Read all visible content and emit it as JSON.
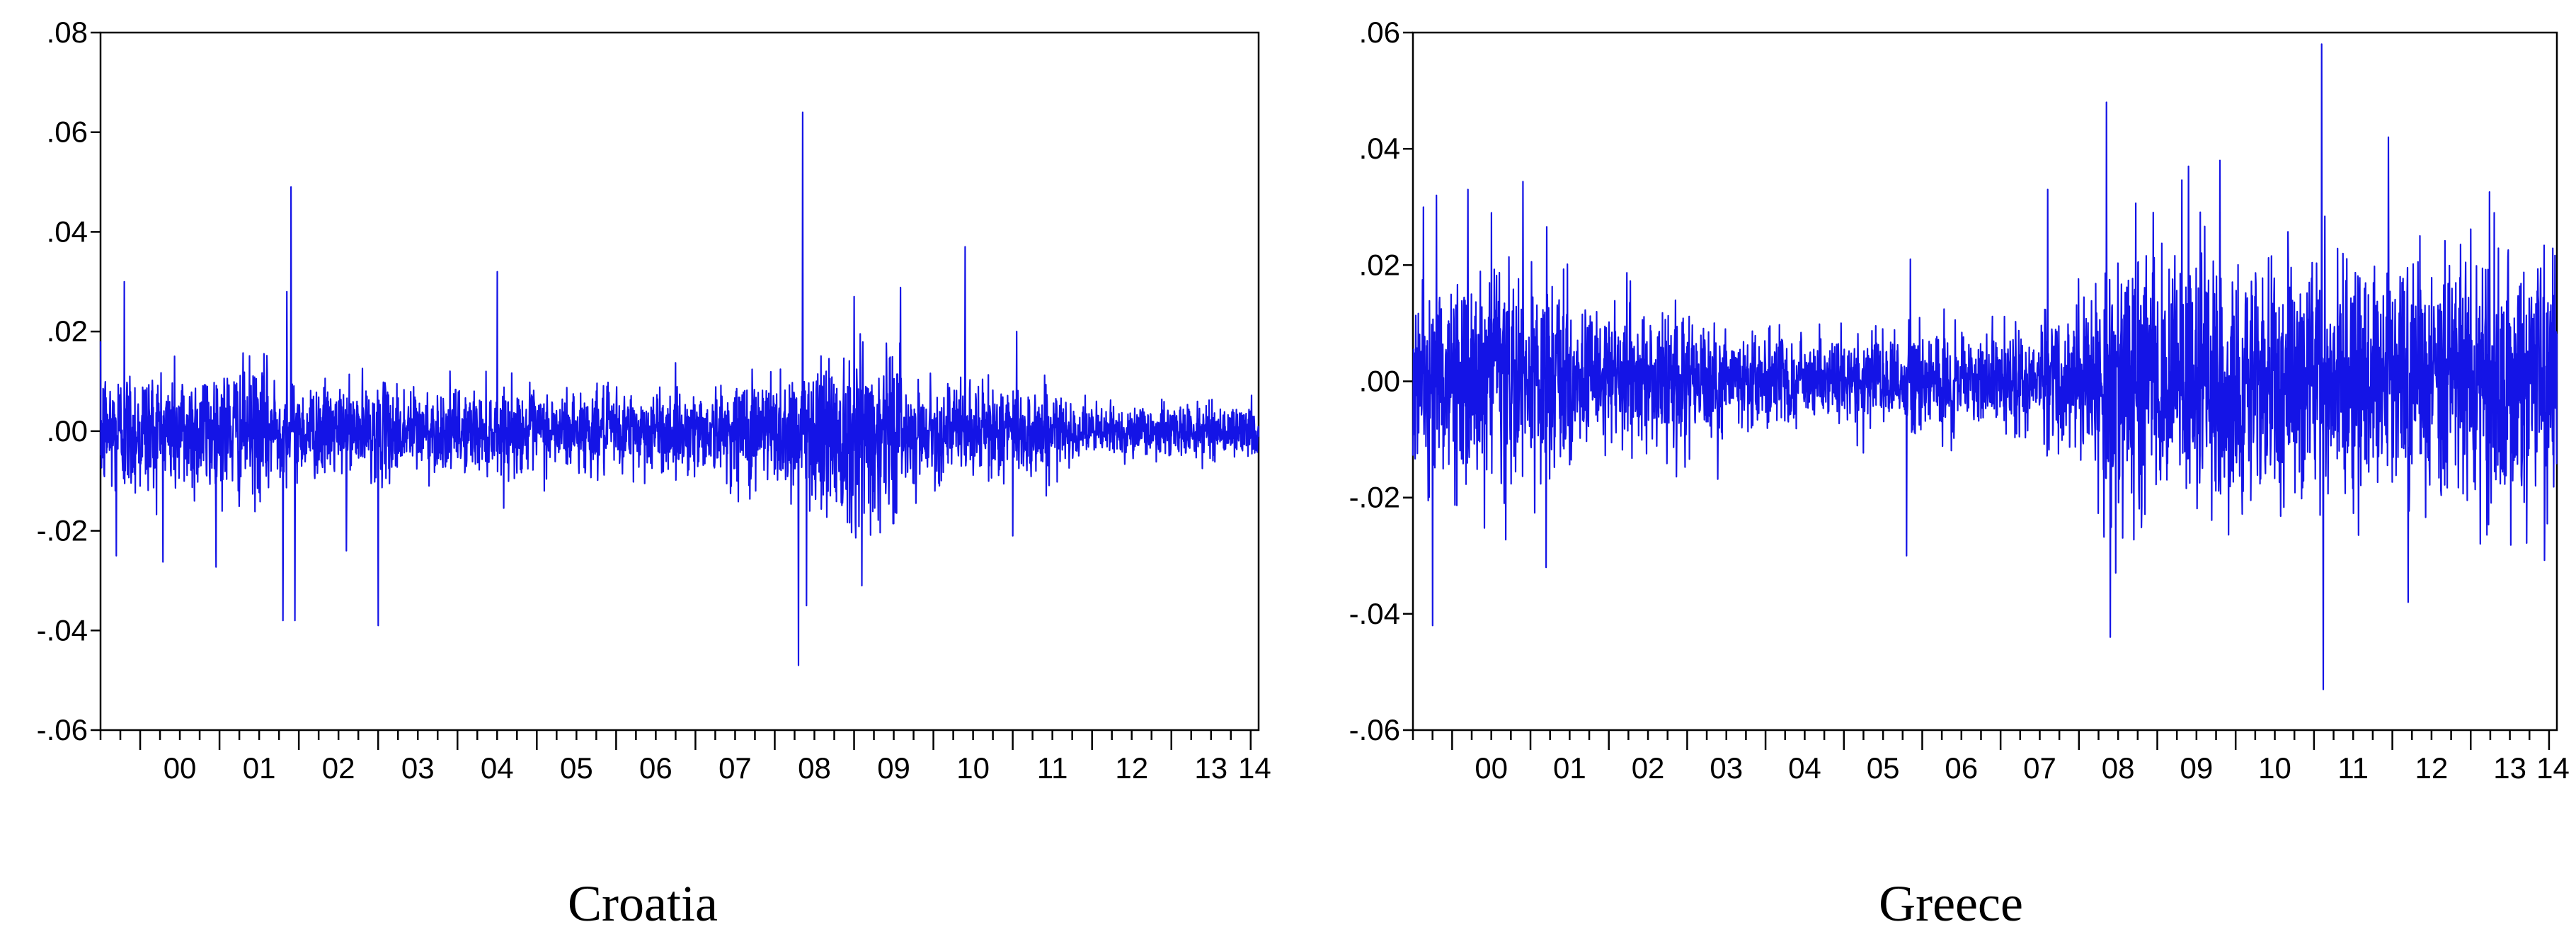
{
  "chart_data": [
    {
      "type": "line",
      "title": "Croatia",
      "xlabel": "",
      "ylabel": "",
      "x_tick_labels": [
        "00",
        "01",
        "02",
        "03",
        "04",
        "05",
        "06",
        "07",
        "08",
        "09",
        "10",
        "11",
        "12",
        "13",
        "14"
      ],
      "x_range_years": [
        1999.5,
        2014.1
      ],
      "y_tick_labels": [
        ".08",
        ".06",
        ".04",
        ".02",
        ".00",
        "-.02",
        "-.04",
        "-.06"
      ],
      "y_ticks": [
        0.08,
        0.06,
        0.04,
        0.02,
        0.0,
        -0.02,
        -0.04,
        -0.06
      ],
      "ylim": [
        -0.06,
        0.08
      ],
      "grid": false,
      "line_color": "#1414e6",
      "series": [
        {
          "volatility_regimes": [
            {
              "from": 1999.5,
              "to": 2001.7,
              "sd": 0.0065
            },
            {
              "from": 2001.7,
              "to": 2003.5,
              "sd": 0.0045
            },
            {
              "from": 2003.5,
              "to": 2007.5,
              "sd": 0.004
            },
            {
              "from": 2007.5,
              "to": 2008.5,
              "sd": 0.006
            },
            {
              "from": 2008.5,
              "to": 2009.6,
              "sd": 0.009
            },
            {
              "from": 2009.6,
              "to": 2011.6,
              "sd": 0.0045
            },
            {
              "from": 2011.6,
              "to": 2014.1,
              "sd": 0.0025
            }
          ],
          "spikes": [
            {
              "x": 1999.7,
              "y": -0.025
            },
            {
              "x": 1999.8,
              "y": 0.03
            },
            {
              "x": 2001.8,
              "y": -0.038
            },
            {
              "x": 2001.85,
              "y": 0.028
            },
            {
              "x": 2001.9,
              "y": 0.049
            },
            {
              "x": 2001.95,
              "y": -0.038
            },
            {
              "x": 2002.6,
              "y": -0.024
            },
            {
              "x": 2003.0,
              "y": -0.039
            },
            {
              "x": 2004.5,
              "y": 0.032
            },
            {
              "x": 2008.3,
              "y": -0.047
            },
            {
              "x": 2008.35,
              "y": 0.064
            },
            {
              "x": 2008.4,
              "y": -0.035
            },
            {
              "x": 2009.0,
              "y": 0.027
            },
            {
              "x": 2009.1,
              "y": -0.031
            },
            {
              "x": 2010.4,
              "y": 0.037
            },
            {
              "x": 2011.0,
              "y": -0.021
            },
            {
              "x": 2011.05,
              "y": 0.02
            }
          ]
        }
      ]
    },
    {
      "type": "line",
      "title": "Greece",
      "xlabel": "",
      "ylabel": "",
      "x_tick_labels": [
        "00",
        "01",
        "02",
        "03",
        "04",
        "05",
        "06",
        "07",
        "08",
        "09",
        "10",
        "11",
        "12",
        "13",
        "14"
      ],
      "x_range_years": [
        1999.5,
        2014.1
      ],
      "y_tick_labels": [
        ".06",
        ".04",
        ".02",
        ".00",
        "-.02",
        "-.04",
        "-.06"
      ],
      "y_ticks": [
        0.06,
        0.04,
        0.02,
        0.0,
        -0.02,
        -0.04,
        -0.06
      ],
      "ylim": [
        -0.06,
        0.06
      ],
      "grid": false,
      "line_color": "#1414e6",
      "series": [
        {
          "volatility_regimes": [
            {
              "from": 1999.5,
              "to": 2001.5,
              "sd": 0.0085
            },
            {
              "from": 2001.5,
              "to": 2003.5,
              "sd": 0.006
            },
            {
              "from": 2003.5,
              "to": 2007.5,
              "sd": 0.004
            },
            {
              "from": 2007.5,
              "to": 2008.2,
              "sd": 0.006
            },
            {
              "from": 2008.2,
              "to": 2014.1,
              "sd": 0.0105
            }
          ],
          "spikes": [
            {
              "x": 1999.75,
              "y": -0.042
            },
            {
              "x": 1999.8,
              "y": 0.032
            },
            {
              "x": 2000.2,
              "y": 0.033
            },
            {
              "x": 2000.5,
              "y": 0.029
            },
            {
              "x": 2001.2,
              "y": -0.032
            },
            {
              "x": 2005.8,
              "y": -0.03
            },
            {
              "x": 2005.85,
              "y": 0.021
            },
            {
              "x": 2007.6,
              "y": 0.033
            },
            {
              "x": 2008.35,
              "y": 0.048
            },
            {
              "x": 2008.4,
              "y": -0.044
            },
            {
              "x": 2009.4,
              "y": 0.037
            },
            {
              "x": 2009.8,
              "y": 0.038
            },
            {
              "x": 2011.1,
              "y": 0.058
            },
            {
              "x": 2011.12,
              "y": -0.053
            },
            {
              "x": 2011.95,
              "y": 0.042
            },
            {
              "x": 2012.2,
              "y": -0.038
            },
            {
              "x": 2013.3,
              "y": 0.029
            }
          ]
        }
      ]
    }
  ]
}
